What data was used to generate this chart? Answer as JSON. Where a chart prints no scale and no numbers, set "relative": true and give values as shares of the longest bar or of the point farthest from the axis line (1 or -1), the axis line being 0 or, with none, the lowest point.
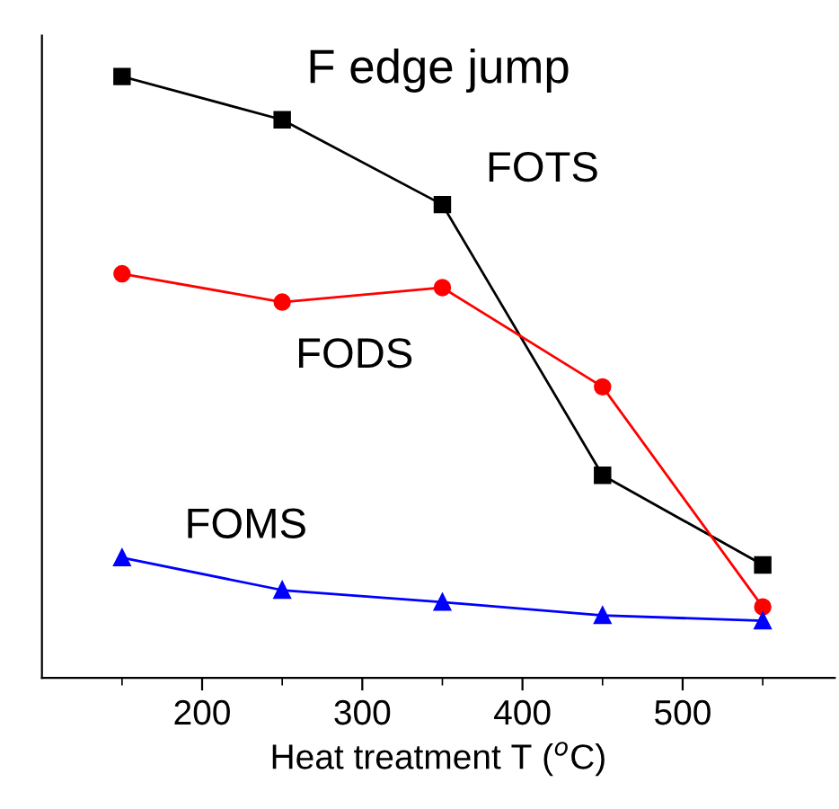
{
  "chart_data": {
    "type": "line",
    "title": "F edge jump",
    "xlabel": "Heat treatment T ($^{o}$C)",
    "relative": true,
    "x": [
      150,
      250,
      350,
      450,
      550
    ],
    "xlim": [
      100,
      595
    ],
    "xticks": [
      200,
      300,
      400,
      500
    ],
    "grid": false,
    "legend": false,
    "series": [
      {
        "name": "FOTS",
        "color": "#000000",
        "marker": "square",
        "values": [
          1,
          0.928,
          0.787,
          0.337,
          0.188
        ]
      },
      {
        "name": "FODS",
        "color": "#ff0000",
        "marker": "circle",
        "values": [
          0.672,
          0.625,
          0.649,
          0.484,
          0.118
        ]
      },
      {
        "name": "FOMS",
        "color": "#0000ff",
        "marker": "triangle",
        "values": [
          0.2,
          0.146,
          0.126,
          0.104,
          0.095
        ]
      }
    ]
  }
}
